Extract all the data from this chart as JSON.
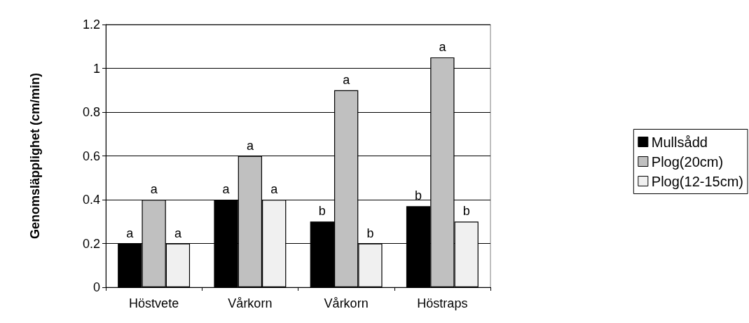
{
  "chart_data": {
    "type": "bar",
    "ylabel": "Genomsläpplighet (cm/min)",
    "categories": [
      "Höstvete",
      "Vårkorn",
      "Vårkorn",
      "Höstraps"
    ],
    "series": [
      {
        "name": "Mullsådd",
        "color": "#000000",
        "values": [
          0.2,
          0.4,
          0.3,
          0.37
        ],
        "value_labels": [
          "a",
          "a",
          "b",
          "b"
        ]
      },
      {
        "name": "Plog(20cm)",
        "color": "#c0c0c0",
        "values": [
          0.4,
          0.6,
          0.9,
          1.05
        ],
        "value_labels": [
          "a",
          "a",
          "a",
          "a"
        ]
      },
      {
        "name": "Plog(12-15cm)",
        "color": "#f0f0f0",
        "values": [
          0.2,
          0.4,
          0.2,
          0.3
        ],
        "value_labels": [
          "a",
          "a",
          "b",
          "b"
        ]
      }
    ],
    "ylim": [
      0,
      1.2
    ],
    "yticks": [
      0,
      0.2,
      0.4,
      0.6,
      0.8,
      1,
      1.2
    ],
    "grid": "y",
    "legend": "right"
  }
}
